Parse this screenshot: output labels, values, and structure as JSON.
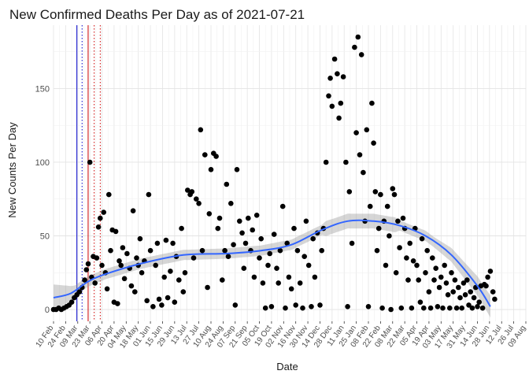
{
  "chart_data": {
    "type": "scatter",
    "title": "New Confirmed Deaths Per Day as of 2021-07-21",
    "xlabel": "Date",
    "ylabel": "New Counts Per Day",
    "x_start": "2020-02-10",
    "x_end": "2021-08-09",
    "ylim": [
      -8,
      193
    ],
    "y_ticks": [
      0,
      50,
      100,
      150
    ],
    "x_tick_labels": [
      "10 Feb",
      "24 Feb",
      "09 Mar",
      "23 Mar",
      "06 Apr",
      "20 Apr",
      "04 May",
      "18 May",
      "01 Jun",
      "15 Jun",
      "29 Jun",
      "13 Jul",
      "27 Jul",
      "10 Aug",
      "24 Aug",
      "07 Sep",
      "21 Sep",
      "05 Oct",
      "19 Oct",
      "02 Nov",
      "16 Nov",
      "30 Nov",
      "14 Dec",
      "28 Dec",
      "11 Jan",
      "25 Jan",
      "08 Feb",
      "22 Feb",
      "08 Mar",
      "22 Mar",
      "05 Apr",
      "19 Apr",
      "03 May",
      "17 May",
      "31 May",
      "14 Jun",
      "28 Jun",
      "12 Jul",
      "26 Jul",
      "09 Aug"
    ],
    "vlines": [
      {
        "day": 27,
        "color": "#0000cc",
        "style": "solid"
      },
      {
        "day": 33,
        "color": "#0000cc",
        "style": "dotted"
      },
      {
        "day": 40,
        "color": "#cc0000",
        "style": "solid"
      },
      {
        "day": 47,
        "color": "#cc0000",
        "style": "dotted"
      },
      {
        "day": 54,
        "color": "#cc0000",
        "style": "dotted"
      }
    ],
    "trend_color": "#3366ff",
    "point_color": "#000000",
    "trend": [
      {
        "day": 0,
        "y": 8
      },
      {
        "day": 20,
        "y": 11
      },
      {
        "day": 40,
        "y": 19
      },
      {
        "day": 60,
        "y": 24
      },
      {
        "day": 100,
        "y": 31
      },
      {
        "day": 150,
        "y": 37
      },
      {
        "day": 200,
        "y": 38
      },
      {
        "day": 240,
        "y": 40
      },
      {
        "day": 275,
        "y": 44
      },
      {
        "day": 310,
        "y": 54
      },
      {
        "day": 340,
        "y": 60
      },
      {
        "day": 370,
        "y": 60
      },
      {
        "day": 400,
        "y": 57
      },
      {
        "day": 430,
        "y": 50
      },
      {
        "day": 460,
        "y": 37
      },
      {
        "day": 490,
        "y": 16
      },
      {
        "day": 505,
        "y": 2
      }
    ],
    "points": [
      {
        "day": 0,
        "y": 0
      },
      {
        "day": 3,
        "y": 0
      },
      {
        "day": 6,
        "y": 1
      },
      {
        "day": 9,
        "y": 0
      },
      {
        "day": 12,
        "y": 1
      },
      {
        "day": 15,
        "y": 2
      },
      {
        "day": 18,
        "y": 3
      },
      {
        "day": 21,
        "y": 5
      },
      {
        "day": 24,
        "y": 8
      },
      {
        "day": 27,
        "y": 10
      },
      {
        "day": 30,
        "y": 12
      },
      {
        "day": 33,
        "y": 15
      },
      {
        "day": 36,
        "y": 20
      },
      {
        "day": 38,
        "y": 27
      },
      {
        "day": 40,
        "y": 31
      },
      {
        "day": 42,
        "y": 100
      },
      {
        "day": 44,
        "y": 22
      },
      {
        "day": 46,
        "y": 36
      },
      {
        "day": 48,
        "y": 18
      },
      {
        "day": 50,
        "y": 35
      },
      {
        "day": 52,
        "y": 56
      },
      {
        "day": 54,
        "y": 62
      },
      {
        "day": 56,
        "y": 30
      },
      {
        "day": 58,
        "y": 66
      },
      {
        "day": 60,
        "y": 25
      },
      {
        "day": 62,
        "y": 14
      },
      {
        "day": 64,
        "y": 78
      },
      {
        "day": 66,
        "y": 40
      },
      {
        "day": 68,
        "y": 54
      },
      {
        "day": 70,
        "y": 5
      },
      {
        "day": 72,
        "y": 53
      },
      {
        "day": 74,
        "y": 4
      },
      {
        "day": 76,
        "y": 33
      },
      {
        "day": 78,
        "y": 30
      },
      {
        "day": 80,
        "y": 42
      },
      {
        "day": 82,
        "y": 21
      },
      {
        "day": 85,
        "y": 38
      },
      {
        "day": 88,
        "y": 28
      },
      {
        "day": 90,
        "y": 16
      },
      {
        "day": 92,
        "y": 67
      },
      {
        "day": 94,
        "y": 12
      },
      {
        "day": 96,
        "y": 35
      },
      {
        "day": 98,
        "y": 30
      },
      {
        "day": 100,
        "y": 48
      },
      {
        "day": 102,
        "y": 25
      },
      {
        "day": 105,
        "y": 33
      },
      {
        "day": 108,
        "y": 6
      },
      {
        "day": 110,
        "y": 78
      },
      {
        "day": 112,
        "y": 40
      },
      {
        "day": 115,
        "y": 2
      },
      {
        "day": 118,
        "y": 30
      },
      {
        "day": 120,
        "y": 45
      },
      {
        "day": 122,
        "y": 7
      },
      {
        "day": 125,
        "y": 3
      },
      {
        "day": 128,
        "y": 22
      },
      {
        "day": 130,
        "y": 47
      },
      {
        "day": 132,
        "y": 8
      },
      {
        "day": 135,
        "y": 26
      },
      {
        "day": 138,
        "y": 45
      },
      {
        "day": 140,
        "y": 5
      },
      {
        "day": 142,
        "y": 36
      },
      {
        "day": 145,
        "y": 20
      },
      {
        "day": 148,
        "y": 55
      },
      {
        "day": 150,
        "y": 12
      },
      {
        "day": 152,
        "y": 25
      },
      {
        "day": 155,
        "y": 81
      },
      {
        "day": 158,
        "y": 78
      },
      {
        "day": 160,
        "y": 80
      },
      {
        "day": 162,
        "y": 35
      },
      {
        "day": 165,
        "y": 75
      },
      {
        "day": 168,
        "y": 72
      },
      {
        "day": 170,
        "y": 122
      },
      {
        "day": 172,
        "y": 40
      },
      {
        "day": 175,
        "y": 105
      },
      {
        "day": 178,
        "y": 15
      },
      {
        "day": 180,
        "y": 65
      },
      {
        "day": 182,
        "y": 95
      },
      {
        "day": 185,
        "y": 106
      },
      {
        "day": 188,
        "y": 104
      },
      {
        "day": 190,
        "y": 55
      },
      {
        "day": 192,
        "y": 62
      },
      {
        "day": 195,
        "y": 20
      },
      {
        "day": 198,
        "y": 40
      },
      {
        "day": 200,
        "y": 85
      },
      {
        "day": 202,
        "y": 36
      },
      {
        "day": 205,
        "y": 72
      },
      {
        "day": 208,
        "y": 44
      },
      {
        "day": 210,
        "y": 3
      },
      {
        "day": 212,
        "y": 95
      },
      {
        "day": 215,
        "y": 60
      },
      {
        "day": 218,
        "y": 52
      },
      {
        "day": 220,
        "y": 28
      },
      {
        "day": 222,
        "y": 45
      },
      {
        "day": 225,
        "y": 62
      },
      {
        "day": 228,
        "y": 40
      },
      {
        "day": 230,
        "y": 54
      },
      {
        "day": 232,
        "y": 22
      },
      {
        "day": 235,
        "y": 64
      },
      {
        "day": 238,
        "y": 35
      },
      {
        "day": 240,
        "y": 48
      },
      {
        "day": 242,
        "y": 18
      },
      {
        "day": 245,
        "y": 1
      },
      {
        "day": 248,
        "y": 30
      },
      {
        "day": 250,
        "y": 38
      },
      {
        "day": 252,
        "y": 2
      },
      {
        "day": 255,
        "y": 51
      },
      {
        "day": 258,
        "y": 28
      },
      {
        "day": 260,
        "y": 18
      },
      {
        "day": 262,
        "y": 40
      },
      {
        "day": 265,
        "y": 70
      },
      {
        "day": 268,
        "y": 1
      },
      {
        "day": 270,
        "y": 45
      },
      {
        "day": 272,
        "y": 22
      },
      {
        "day": 275,
        "y": 14
      },
      {
        "day": 278,
        "y": 55
      },
      {
        "day": 280,
        "y": 3
      },
      {
        "day": 282,
        "y": 40
      },
      {
        "day": 285,
        "y": 18
      },
      {
        "day": 288,
        "y": 1
      },
      {
        "day": 290,
        "y": 36
      },
      {
        "day": 292,
        "y": 60
      },
      {
        "day": 295,
        "y": 30
      },
      {
        "day": 298,
        "y": 2
      },
      {
        "day": 300,
        "y": 48
      },
      {
        "day": 302,
        "y": 22
      },
      {
        "day": 305,
        "y": 52
      },
      {
        "day": 308,
        "y": 3
      },
      {
        "day": 310,
        "y": 40
      },
      {
        "day": 312,
        "y": 55
      },
      {
        "day": 315,
        "y": 100
      },
      {
        "day": 318,
        "y": 145
      },
      {
        "day": 320,
        "y": 157
      },
      {
        "day": 322,
        "y": 138
      },
      {
        "day": 325,
        "y": 170
      },
      {
        "day": 328,
        "y": 160
      },
      {
        "day": 330,
        "y": 130
      },
      {
        "day": 332,
        "y": 140
      },
      {
        "day": 335,
        "y": 158
      },
      {
        "day": 338,
        "y": 100
      },
      {
        "day": 340,
        "y": 2
      },
      {
        "day": 342,
        "y": 80
      },
      {
        "day": 345,
        "y": 45
      },
      {
        "day": 348,
        "y": 178
      },
      {
        "day": 350,
        "y": 120
      },
      {
        "day": 352,
        "y": 185
      },
      {
        "day": 354,
        "y": 105
      },
      {
        "day": 356,
        "y": 173
      },
      {
        "day": 358,
        "y": 93
      },
      {
        "day": 360,
        "y": 60
      },
      {
        "day": 362,
        "y": 122
      },
      {
        "day": 364,
        "y": 2
      },
      {
        "day": 366,
        "y": 70
      },
      {
        "day": 368,
        "y": 140
      },
      {
        "day": 370,
        "y": 113
      },
      {
        "day": 372,
        "y": 80
      },
      {
        "day": 374,
        "y": 40
      },
      {
        "day": 376,
        "y": 55
      },
      {
        "day": 378,
        "y": 78
      },
      {
        "day": 380,
        "y": 1
      },
      {
        "day": 382,
        "y": 60
      },
      {
        "day": 384,
        "y": 30
      },
      {
        "day": 386,
        "y": 70
      },
      {
        "day": 388,
        "y": 50
      },
      {
        "day": 390,
        "y": 0
      },
      {
        "day": 392,
        "y": 82
      },
      {
        "day": 394,
        "y": 78
      },
      {
        "day": 396,
        "y": 25
      },
      {
        "day": 398,
        "y": 60
      },
      {
        "day": 400,
        "y": 42
      },
      {
        "day": 402,
        "y": 1
      },
      {
        "day": 404,
        "y": 62
      },
      {
        "day": 406,
        "y": 55
      },
      {
        "day": 408,
        "y": 35
      },
      {
        "day": 410,
        "y": 20
      },
      {
        "day": 412,
        "y": 45
      },
      {
        "day": 414,
        "y": 1
      },
      {
        "day": 416,
        "y": 33
      },
      {
        "day": 418,
        "y": 55
      },
      {
        "day": 420,
        "y": 30
      },
      {
        "day": 422,
        "y": 20
      },
      {
        "day": 424,
        "y": 5
      },
      {
        "day": 426,
        "y": 48
      },
      {
        "day": 428,
        "y": 1
      },
      {
        "day": 430,
        "y": 25
      },
      {
        "day": 432,
        "y": 40
      },
      {
        "day": 434,
        "y": 12
      },
      {
        "day": 436,
        "y": 1
      },
      {
        "day": 438,
        "y": 35
      },
      {
        "day": 440,
        "y": 20
      },
      {
        "day": 442,
        "y": 28
      },
      {
        "day": 444,
        "y": 2
      },
      {
        "day": 446,
        "y": 15
      },
      {
        "day": 448,
        "y": 22
      },
      {
        "day": 450,
        "y": 1
      },
      {
        "day": 452,
        "y": 30
      },
      {
        "day": 454,
        "y": 18
      },
      {
        "day": 456,
        "y": 10
      },
      {
        "day": 458,
        "y": 1
      },
      {
        "day": 460,
        "y": 25
      },
      {
        "day": 462,
        "y": 12
      },
      {
        "day": 464,
        "y": 20
      },
      {
        "day": 466,
        "y": 1
      },
      {
        "day": 468,
        "y": 15
      },
      {
        "day": 470,
        "y": 8
      },
      {
        "day": 472,
        "y": 1
      },
      {
        "day": 474,
        "y": 18
      },
      {
        "day": 476,
        "y": 10
      },
      {
        "day": 478,
        "y": 20
      },
      {
        "day": 480,
        "y": 3
      },
      {
        "day": 482,
        "y": 12
      },
      {
        "day": 484,
        "y": 1
      },
      {
        "day": 486,
        "y": 8
      },
      {
        "day": 488,
        "y": 15
      },
      {
        "day": 490,
        "y": 2
      },
      {
        "day": 492,
        "y": 5
      },
      {
        "day": 494,
        "y": 16
      },
      {
        "day": 496,
        "y": 1
      },
      {
        "day": 498,
        "y": 17
      },
      {
        "day": 500,
        "y": 16
      },
      {
        "day": 502,
        "y": 22
      },
      {
        "day": 505,
        "y": 26
      },
      {
        "day": 508,
        "y": 12
      },
      {
        "day": 510,
        "y": 7
      }
    ]
  }
}
